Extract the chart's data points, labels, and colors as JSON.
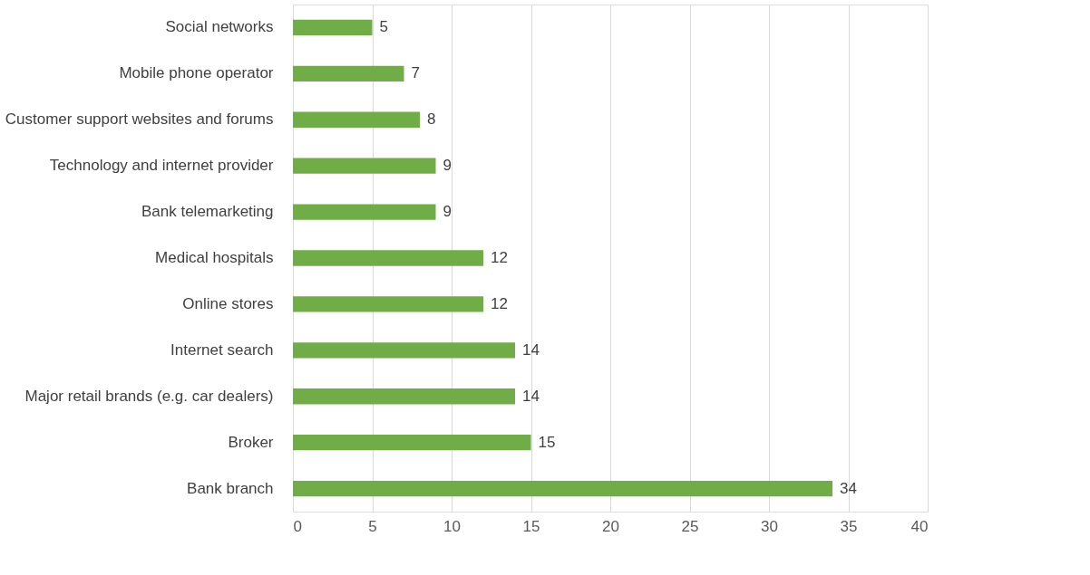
{
  "chart_data": {
    "type": "bar",
    "orientation": "horizontal",
    "categories": [
      "Social networks",
      "Mobile phone operator",
      "Customer support websites and forums",
      "Technology and internet provider",
      "Bank telemarketing",
      "Medical hospitals",
      "Online stores",
      "Internet search",
      "Major retail brands (e.g. car dealers)",
      "Broker",
      "Bank branch"
    ],
    "values": [
      5,
      7,
      8,
      9,
      9,
      12,
      12,
      14,
      14,
      15,
      34
    ],
    "color": "#70ad47",
    "xlim": [
      0,
      40
    ],
    "xticks": [
      0,
      5,
      10,
      15,
      20,
      25,
      30,
      35,
      40
    ],
    "grid": "x",
    "data_labels": true
  }
}
